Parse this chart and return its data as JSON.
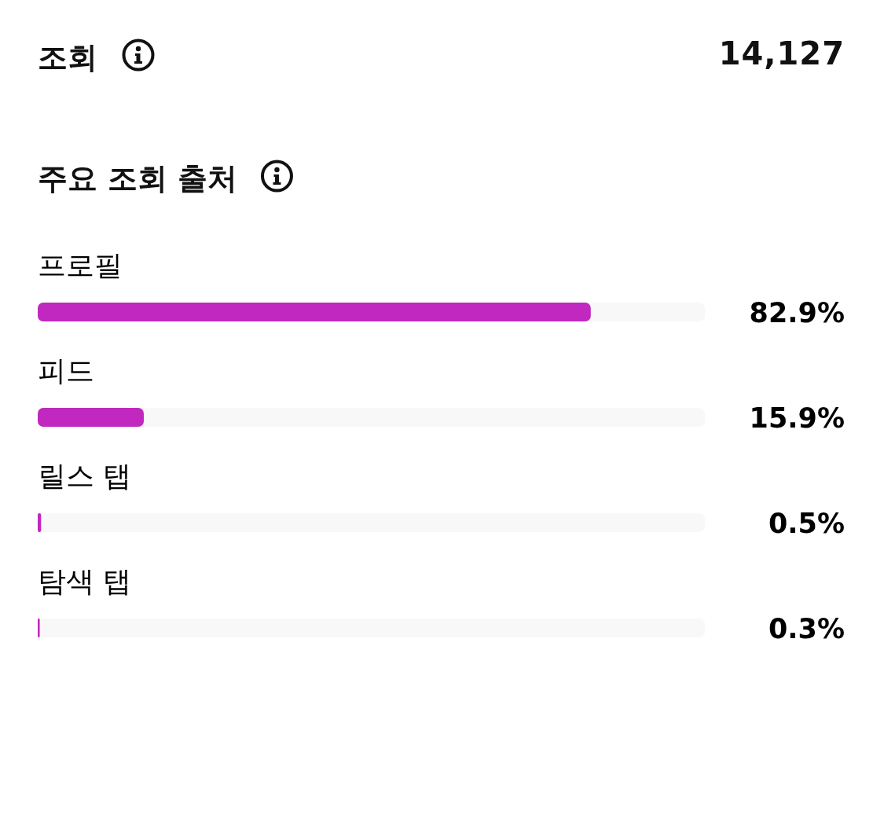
{
  "chart_data": {
    "type": "bar",
    "orientation": "horizontal",
    "title": "주요 조회 출처",
    "annotations": [
      "조회",
      "14,127"
    ],
    "categories": [
      "프로필",
      "피드",
      "릴스 탭",
      "탐색 탭"
    ],
    "values": [
      82.9,
      15.9,
      0.5,
      0.3
    ],
    "color": "#c128bf",
    "xlim": [
      0,
      100
    ],
    "value_labels": [
      "82.9%",
      "15.9%",
      "0.5%",
      "0.3%"
    ],
    "tick_labels": "y"
  }
}
